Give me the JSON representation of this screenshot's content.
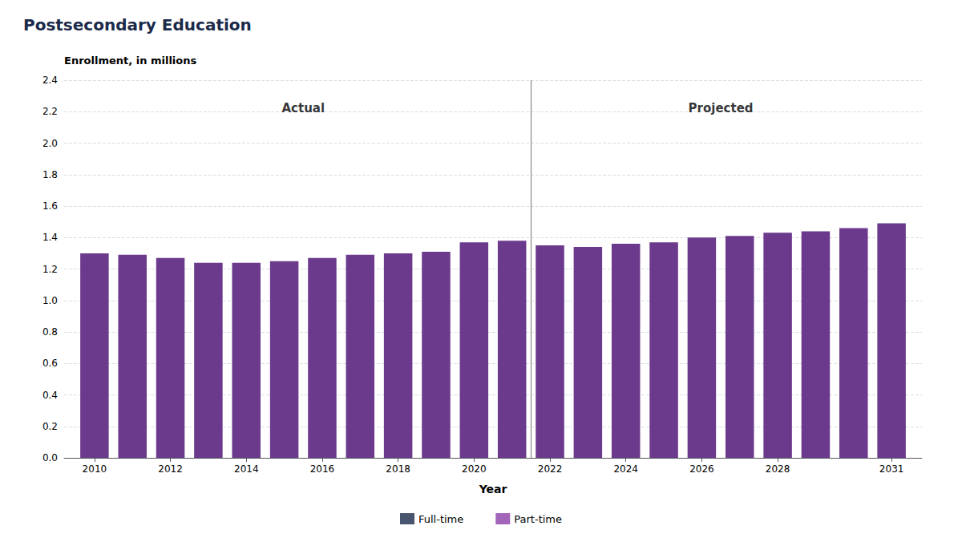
{
  "chart_data": {
    "type": "bar",
    "title": "Postsecondary Education",
    "x": [
      2010,
      2011,
      2012,
      2013,
      2014,
      2015,
      2016,
      2017,
      2018,
      2019,
      2020,
      2021,
      2022,
      2023,
      2024,
      2025,
      2026,
      2027,
      2028,
      2029,
      2030,
      2031
    ],
    "values": [
      1.3,
      1.29,
      1.27,
      1.24,
      1.24,
      1.25,
      1.27,
      1.29,
      1.3,
      1.31,
      1.37,
      1.38,
      1.35,
      1.34,
      1.36,
      1.37,
      1.4,
      1.41,
      1.43,
      1.44,
      1.46,
      1.49
    ],
    "color": "#6B3A8C",
    "xlabel": "Year",
    "ylabel": "Enrollment, in millions",
    "xlim": [
      2009.2,
      2031.8
    ],
    "xticks": [
      2010,
      2012,
      2014,
      2016,
      2018,
      2020,
      2022,
      2024,
      2026,
      2028,
      2031
    ],
    "ylim": [
      0,
      2.4
    ],
    "yticks": [
      {
        "value": 0.0,
        "label": "0.0"
      },
      0.2,
      0.4,
      0.6,
      0.8,
      {
        "value": 1.0,
        "label": "1.0"
      },
      1.2,
      1.4,
      1.6,
      1.8,
      {
        "value": 2.0,
        "label": "2.0"
      },
      2.2,
      2.4
    ],
    "grid": true,
    "divider_x": 2021.5,
    "annotations": [
      {
        "text": "Actual",
        "x": 2015.5,
        "y": 2.22
      },
      {
        "text": "Projected",
        "x": 2026.5,
        "y": 2.22
      }
    ],
    "legend": "bottom",
    "legend_items": [
      {
        "name": "Full-time",
        "color": "#1B2A4A"
      },
      {
        "name": "Part-time",
        "color": "#8B3FA8"
      }
    ]
  }
}
